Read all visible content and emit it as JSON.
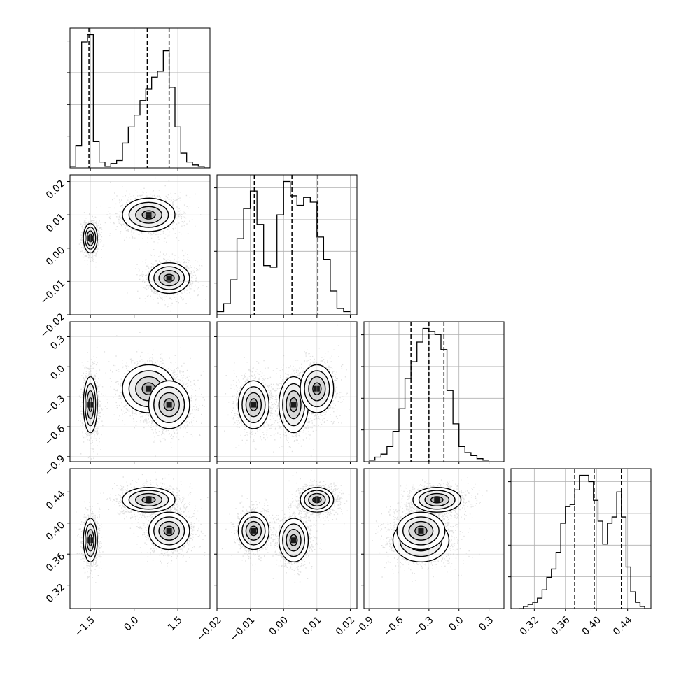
{
  "chart_data": {
    "type": "corner",
    "parameters": [
      {
        "range": [
          -2.2,
          2.6
        ],
        "ticks": [
          -1.5,
          0.0,
          1.5
        ],
        "tick_labels": [
          "−1.5",
          "0.0",
          "1.5"
        ],
        "quantiles": [
          -1.55,
          0.45,
          1.2
        ]
      },
      {
        "range": [
          -0.02,
          0.022
        ],
        "ticks": [
          -0.02,
          -0.01,
          0.0,
          0.01,
          0.02
        ],
        "tick_labels": [
          "−0.02",
          "−0.01",
          "0.00",
          "0.01",
          "0.02"
        ],
        "quantiles": [
          -0.0088,
          0.0025,
          0.0103
        ]
      },
      {
        "range": [
          -0.95,
          0.45
        ],
        "ticks": [
          -0.9,
          -0.6,
          -0.3,
          0.0,
          0.3
        ],
        "tick_labels": [
          "−0.9",
          "−0.6",
          "−0.3",
          "0.0",
          "0.3"
        ],
        "quantiles": [
          -0.48,
          -0.3,
          -0.15
        ]
      },
      {
        "range": [
          0.29,
          0.47
        ],
        "ticks": [
          0.32,
          0.36,
          0.4,
          0.44
        ],
        "tick_labels": [
          "0.32",
          "0.36",
          "0.40",
          "0.44"
        ],
        "quantiles": [
          0.372,
          0.397,
          0.432
        ]
      }
    ],
    "histograms": [
      {
        "param": 0,
        "edges": [
          -2.2,
          -2.0,
          -1.8,
          -1.6,
          -1.4,
          -1.2,
          -1.0,
          -0.8,
          -0.6,
          -0.4,
          -0.2,
          0.0,
          0.2,
          0.4,
          0.6,
          0.8,
          1.0,
          1.2,
          1.4,
          1.6,
          1.8,
          2.0,
          2.2,
          2.4,
          2.6
        ],
        "counts": [
          1,
          15,
          86,
          91,
          18,
          4,
          1,
          3,
          5,
          17,
          28,
          36,
          46,
          54,
          62,
          66,
          80,
          55,
          28,
          10,
          4,
          2,
          1,
          0
        ]
      },
      {
        "param": 1,
        "edges": [
          -0.02,
          -0.018,
          -0.016,
          -0.014,
          -0.012,
          -0.01,
          -0.008,
          -0.006,
          -0.004,
          -0.002,
          0.0,
          0.002,
          0.004,
          0.006,
          0.008,
          0.01,
          0.012,
          0.014,
          0.016,
          0.018,
          0.02
        ],
        "counts": [
          2,
          7,
          22,
          48,
          67,
          78,
          57,
          31,
          30,
          63,
          84,
          75,
          69,
          74,
          71,
          49,
          35,
          15,
          4,
          2
        ]
      },
      {
        "param": 2,
        "edges": [
          -0.9,
          -0.84,
          -0.78,
          -0.72,
          -0.66,
          -0.6,
          -0.54,
          -0.48,
          -0.42,
          -0.36,
          -0.3,
          -0.24,
          -0.18,
          -0.12,
          -0.06,
          0.0,
          0.06,
          0.12,
          0.18,
          0.24,
          0.3
        ],
        "counts": [
          1,
          3,
          5,
          10,
          20,
          35,
          55,
          66,
          79,
          88,
          86,
          84,
          74,
          47,
          25,
          10,
          6,
          4,
          2,
          1
        ]
      },
      {
        "param": 3,
        "edges": [
          0.3,
          0.306,
          0.312,
          0.318,
          0.324,
          0.33,
          0.336,
          0.342,
          0.348,
          0.354,
          0.36,
          0.366,
          0.372,
          0.378,
          0.384,
          0.39,
          0.396,
          0.402,
          0.408,
          0.414,
          0.42,
          0.426,
          0.432,
          0.438,
          0.444,
          0.45,
          0.456,
          0.462,
          0.468
        ],
        "counts": [
          0,
          1,
          2,
          3,
          5,
          9,
          15,
          19,
          27,
          41,
          49,
          50,
          57,
          64,
          64,
          61,
          52,
          42,
          31,
          41,
          44,
          56,
          44,
          20,
          8,
          3,
          1,
          0
        ]
      }
    ],
    "modes": [
      {
        "p": [
          -1.5,
          0.003,
          -0.38,
          0.378
        ],
        "sd": [
          0.12,
          0.0022,
          0.14,
          0.014
        ],
        "weight": 0.3
      },
      {
        "p": [
          0.5,
          0.01,
          -0.22,
          0.43
        ],
        "sd": [
          0.45,
          0.0025,
          0.12,
          0.008
        ],
        "weight": 0.35
      },
      {
        "p": [
          1.2,
          -0.009,
          -0.38,
          0.39
        ],
        "sd": [
          0.35,
          0.0023,
          0.12,
          0.012
        ],
        "weight": 0.35
      }
    ],
    "contour_levels_sigma": [
      0.5,
      1.0,
      1.5,
      2.0
    ],
    "grid": true
  }
}
